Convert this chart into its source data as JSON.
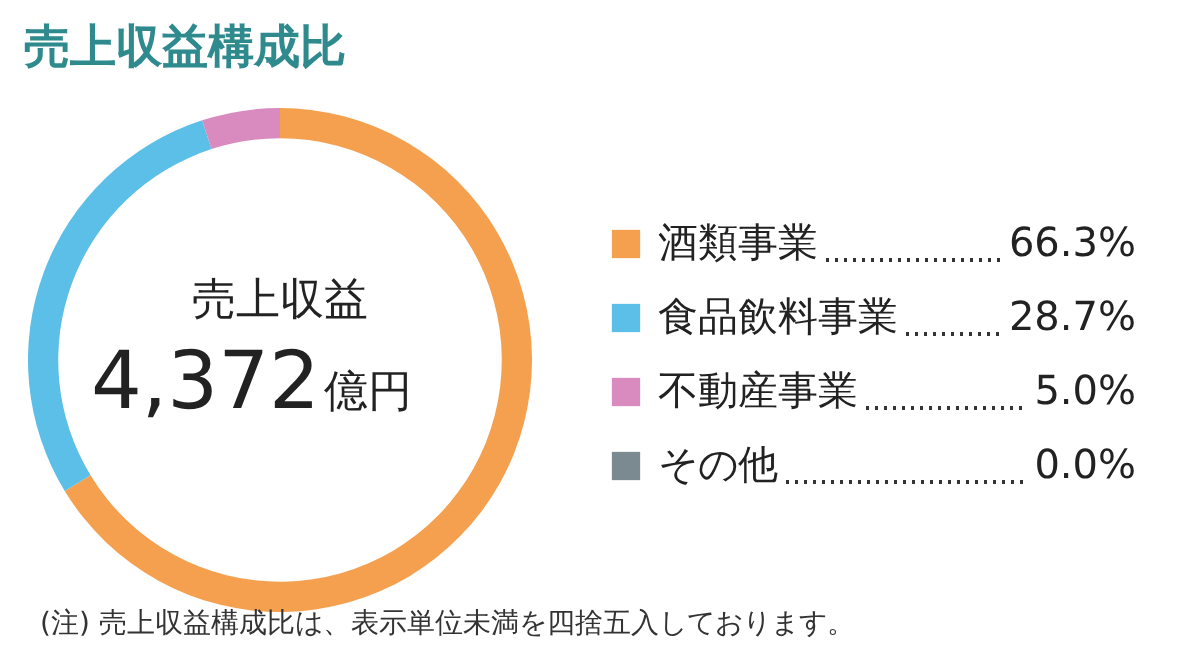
{
  "chart_data": {
    "type": "donut",
    "title": "売上収益構成比",
    "categories": [
      "酒類事業",
      "食品飲料事業",
      "不動産事業",
      "その他"
    ],
    "values": [
      66.3,
      28.7,
      5.0,
      0.0
    ],
    "colors": [
      "#f4a04f",
      "#5bbfe8",
      "#d98bbf",
      "#7a8a90"
    ],
    "value_labels": [
      "66.3%",
      "28.7%",
      "5.0%",
      "0.0%"
    ],
    "legend": "right",
    "annotations": [
      "売上収益",
      "4,372",
      "億円",
      "(注) 売上収益構成比は、表示単位未満を四捨五入しております。"
    ]
  }
}
